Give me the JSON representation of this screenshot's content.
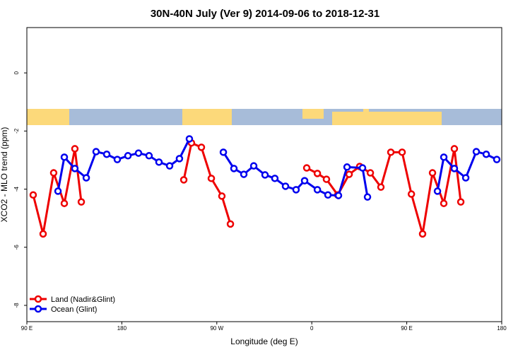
{
  "chart_data": {
    "type": "line",
    "title": "30N-40N July (Ver 9)   2014-09-06 to 2018-12-31",
    "x_label": "Longitude (deg E)",
    "y_label": "XCO2 - MLO trend (ppm)",
    "xlim": [
      90,
      540
    ],
    "xticks": [
      {
        "value": 90,
        "label": "90 E"
      },
      180,
      {
        "value": 270,
        "label": "90 W"
      },
      {
        "value": 360,
        "label": "0"
      },
      {
        "value": 450,
        "label": "90 E"
      },
      {
        "value": 540,
        "label": "180"
      }
    ],
    "ylim": [
      -8.56,
      1.56
    ],
    "yticks": [
      0,
      -2,
      -4,
      -6,
      -8
    ],
    "legend": "bottom-left",
    "series": [
      {
        "name": "Land (Nadir&Glint)",
        "color": "#ee0000",
        "x": [
          96.0,
          105.4,
          115.4,
          125.5,
          135.5,
          141.6,
          null,
          238.7,
          246.0,
          255.4,
          264.8,
          274.8,
          282.9,
          null,
          355.2,
          365.3,
          373.9,
          384.6,
          395.4,
          405.4,
          415.5,
          425.5,
          434.9,
          445.6,
          454.4,
          465.0,
          474.4,
          485.1,
          495.1,
          501.2
        ],
        "values": [
          -4.2,
          -5.54,
          -3.44,
          -4.49,
          -2.61,
          -4.44,
          null,
          -3.68,
          -2.41,
          -2.56,
          -3.63,
          -4.24,
          -5.2,
          null,
          -3.27,
          -3.46,
          -3.66,
          -4.2,
          -3.49,
          -3.22,
          -3.44,
          -3.93,
          -2.73,
          -2.73,
          -4.17,
          -5.54,
          -3.44,
          -4.49,
          -2.61,
          -4.44
        ]
      },
      {
        "name": "Ocean (Glint)",
        "color": "#0000ee",
        "x": [
          119.5,
          125.5,
          135.5,
          146.3,
          155.6,
          165.7,
          175.7,
          185.8,
          195.8,
          205.8,
          215.2,
          225.3,
          234.6,
          244.0,
          null,
          276.2,
          286.2,
          295.6,
          305.0,
          315.7,
          325.0,
          335.1,
          345.1,
          353.2,
          365.3,
          375.3,
          385.3,
          393.4,
          408.1,
          412.8,
          null,
          479.1,
          485.1,
          495.1,
          505.9,
          515.9,
          525.3,
          535.3
        ],
        "values": [
          -4.07,
          -2.9,
          -3.29,
          -3.61,
          -2.71,
          -2.8,
          -2.98,
          -2.85,
          -2.76,
          -2.85,
          -3.07,
          -3.2,
          -2.95,
          -2.27,
          null,
          -2.73,
          -3.29,
          -3.49,
          -3.2,
          -3.51,
          -3.63,
          -3.9,
          -4.02,
          -3.71,
          -4.02,
          -4.2,
          -4.22,
          -3.24,
          -3.27,
          -4.27,
          null,
          -4.07,
          -2.9,
          -3.29,
          -3.61,
          -2.71,
          -2.8,
          -2.98
        ]
      }
    ]
  }
}
